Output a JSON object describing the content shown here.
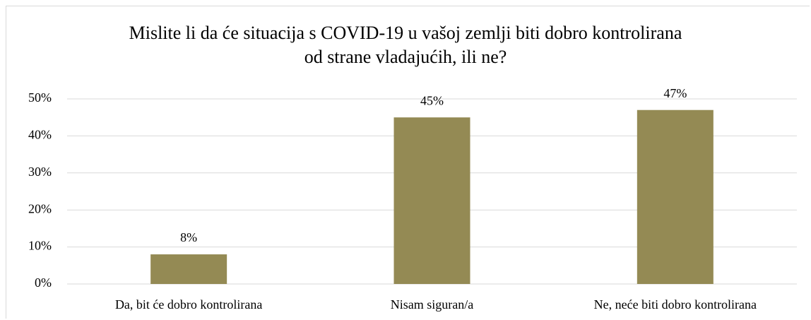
{
  "chart_data": {
    "type": "bar",
    "title": "Mislite li da će situacija s COVID-19 u vašoj zemlji biti dobro kontrolirana od strane vladajućih, ili ne?",
    "categories": [
      "Da, bit će dobro kontrolirana",
      "Nisam siguran/a",
      "Ne, neće biti dobro kontrolirana"
    ],
    "values": [
      8,
      45,
      47
    ],
    "value_labels": [
      "8%",
      "45%",
      "47%"
    ],
    "color": "#948a54",
    "ylim": [
      0,
      50
    ],
    "yticks": [
      {
        "value": 0,
        "label": "0%"
      },
      {
        "value": 10,
        "label": "10%"
      },
      {
        "value": 20,
        "label": "20%"
      },
      {
        "value": 30,
        "label": "30%"
      },
      {
        "value": 40,
        "label": "40%"
      },
      {
        "value": 50,
        "label": "50%"
      }
    ],
    "grid": true
  }
}
